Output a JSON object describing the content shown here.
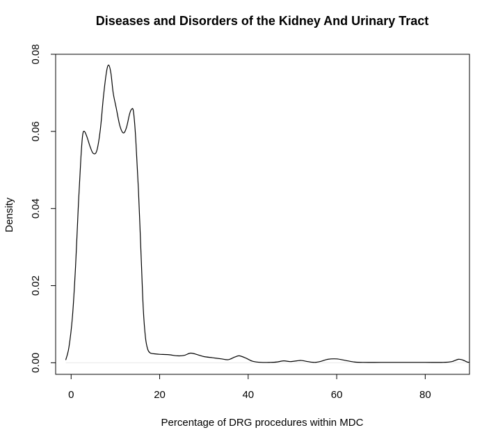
{
  "chart_data": {
    "type": "line",
    "title": "Diseases and Disorders of the Kidney And Urinary Tract",
    "xlabel": "Percentage of DRG procedures within MDC",
    "ylabel": "Density",
    "xlim": [
      -3.5,
      90
    ],
    "ylim": [
      -0.003,
      0.08
    ],
    "x_ticks": [
      0,
      20,
      40,
      60,
      80
    ],
    "y_ticks": [
      0.0,
      0.02,
      0.04,
      0.06,
      0.08
    ],
    "x_tick_labels": [
      "0",
      "20",
      "40",
      "60",
      "80"
    ],
    "y_tick_labels": [
      "0.00",
      "0.02",
      "0.04",
      "0.06",
      "0.08"
    ],
    "grid": false,
    "legend": "none",
    "series": [
      {
        "color": "#000000",
        "x": [
          -1.2,
          -0.5,
          0.3,
          1.0,
          1.6,
          2.2,
          2.6,
          3.0,
          3.6,
          4.3,
          5.0,
          5.8,
          6.6,
          7.3,
          8.0,
          8.5,
          9.0,
          9.5,
          10.2,
          11.0,
          11.8,
          12.5,
          13.2,
          13.7,
          14.1,
          14.6,
          15.2,
          15.8,
          16.3,
          16.8,
          17.3,
          17.8,
          18.3,
          19.0,
          20.0,
          22.0,
          24.0,
          25.5,
          27.0,
          28.5,
          30.0,
          32.0,
          34.0,
          35.5,
          37.0,
          38.0,
          39.5,
          41.0,
          43.0,
          45.0,
          46.5,
          48.0,
          49.5,
          51.0,
          52.0,
          53.5,
          55.0,
          56.5,
          58.0,
          60.0,
          62.0,
          64.0,
          66.0,
          70.0,
          75.0,
          80.0,
          84.0,
          86.0,
          87.5,
          88.5,
          89.5,
          90.0
        ],
        "y": [
          0.0008,
          0.004,
          0.012,
          0.025,
          0.04,
          0.053,
          0.059,
          0.06,
          0.0585,
          0.056,
          0.0543,
          0.055,
          0.0605,
          0.069,
          0.0755,
          0.0772,
          0.075,
          0.07,
          0.066,
          0.0615,
          0.0596,
          0.061,
          0.0645,
          0.0658,
          0.065,
          0.058,
          0.045,
          0.028,
          0.014,
          0.0065,
          0.0035,
          0.0026,
          0.0024,
          0.0023,
          0.0022,
          0.0021,
          0.0018,
          0.0019,
          0.0025,
          0.0021,
          0.0016,
          0.0013,
          0.001,
          0.0008,
          0.0015,
          0.0018,
          0.0012,
          0.0004,
          0.0001,
          0.0001,
          0.0002,
          0.0005,
          0.0003,
          0.0005,
          0.0006,
          0.0003,
          0.0001,
          0.0004,
          0.0009,
          0.001,
          0.0006,
          0.0002,
          0.0001,
          0.0001,
          0.0001,
          0.0001,
          0.0001,
          0.0003,
          0.0009,
          0.0007,
          0.0002,
          0.0001
        ]
      }
    ]
  }
}
